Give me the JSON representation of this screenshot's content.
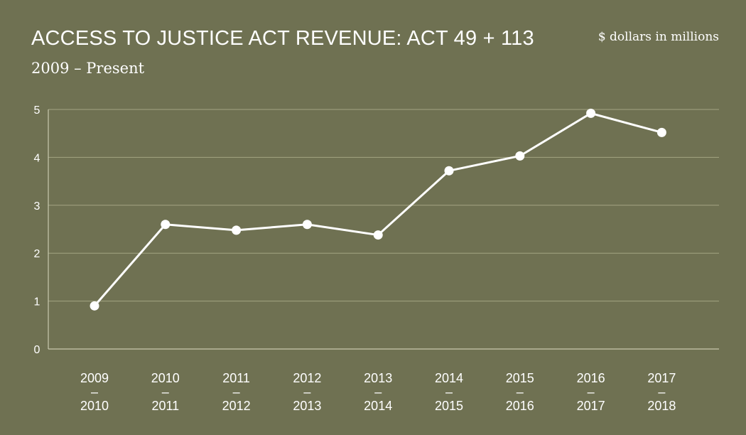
{
  "chart_data": {
    "type": "line",
    "title": "ACCESS TO JUSTICE ACT REVENUE: ACT 49 + 113",
    "subtitle": "2009 – Present",
    "units_note": "$ dollars in millions",
    "categories": [
      [
        "2009",
        "–",
        "2010"
      ],
      [
        "2010",
        "–",
        "2011"
      ],
      [
        "2011",
        "–",
        "2012"
      ],
      [
        "2012",
        "–",
        "2013"
      ],
      [
        "2013",
        "–",
        "2014"
      ],
      [
        "2014",
        "–",
        "2015"
      ],
      [
        "2015",
        "–",
        "2016"
      ],
      [
        "2016",
        "–",
        "2017"
      ],
      [
        "2017",
        "–",
        "2018"
      ]
    ],
    "series": [
      {
        "values": [
          0.9,
          2.6,
          2.48,
          2.6,
          2.38,
          3.72,
          4.03,
          4.92,
          4.52
        ]
      }
    ],
    "yticks": [
      "0",
      "1",
      "2",
      "3",
      "4",
      "5"
    ],
    "ylim": [
      0,
      5
    ],
    "grid": true,
    "colors": {
      "background": "#6f7152",
      "line": "#ffffff",
      "grid": "#a3a482"
    }
  }
}
